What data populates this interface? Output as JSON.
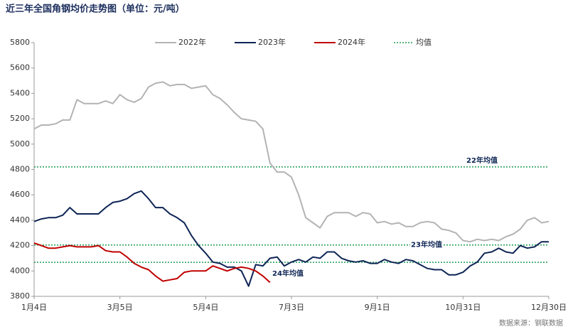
{
  "chart_data": {
    "type": "line",
    "title": "近三年全国角钢均价走势图（单位：元/吨）",
    "source": "数据来源：钢联数据",
    "categories": [
      "1月4日",
      null,
      null,
      null,
      null,
      null,
      null,
      null,
      null,
      null,
      null,
      null,
      "3月5日",
      null,
      null,
      null,
      null,
      null,
      null,
      null,
      null,
      null,
      null,
      null,
      "5月4日",
      null,
      null,
      null,
      null,
      null,
      null,
      null,
      null,
      null,
      null,
      null,
      "7月3日",
      null,
      null,
      null,
      null,
      null,
      null,
      null,
      null,
      null,
      null,
      null,
      "9月1日",
      null,
      null,
      null,
      null,
      null,
      null,
      null,
      null,
      null,
      null,
      null,
      "10月31日",
      null,
      null,
      null,
      null,
      null,
      null,
      null,
      null,
      null,
      null,
      null,
      "12月30日"
    ],
    "ylim": [
      3800,
      5800
    ],
    "yticks": [
      3800,
      4000,
      4200,
      4400,
      4600,
      4800,
      5000,
      5200,
      5400,
      5600,
      5800
    ],
    "series": [
      {
        "name": "2022年",
        "color": "#b3b3b3",
        "values": [
          5120,
          5150,
          5150,
          5160,
          5190,
          5190,
          5350,
          5320,
          5320,
          5320,
          5340,
          5320,
          5390,
          5350,
          5330,
          5360,
          5450,
          5480,
          5490,
          5460,
          5470,
          5470,
          5440,
          5450,
          5460,
          5390,
          5360,
          5310,
          5250,
          5200,
          5190,
          5180,
          5120,
          4850,
          4780,
          4780,
          4740,
          4600,
          4420,
          4380,
          4340,
          4430,
          4460,
          4460,
          4460,
          4430,
          4460,
          4450,
          4380,
          4390,
          4370,
          4380,
          4350,
          4350,
          4380,
          4390,
          4380,
          4330,
          4320,
          4300,
          4240,
          4230,
          4250,
          4240,
          4250,
          4240,
          4270,
          4290,
          4330,
          4400,
          4420,
          4380,
          4390
        ]
      },
      {
        "name": "2023年",
        "color": "#0d2455",
        "values": [
          4390,
          4410,
          4420,
          4420,
          4440,
          4500,
          4450,
          4450,
          4450,
          4450,
          4500,
          4540,
          4550,
          4570,
          4610,
          4630,
          4570,
          4500,
          4500,
          4450,
          4420,
          4380,
          4280,
          4200,
          4140,
          4070,
          4060,
          4030,
          4030,
          4000,
          3880,
          4050,
          4040,
          4100,
          4110,
          4040,
          4070,
          4090,
          4070,
          4110,
          4100,
          4150,
          4150,
          4100,
          4080,
          4070,
          4080,
          4060,
          4060,
          4090,
          4070,
          4060,
          4090,
          4080,
          4050,
          4020,
          4010,
          4010,
          3970,
          3970,
          3990,
          4040,
          4070,
          4140,
          4150,
          4180,
          4150,
          4140,
          4200,
          4180,
          4190,
          4230,
          4230
        ]
      },
      {
        "name": "2024年",
        "color": "#c00000",
        "values": [
          4220,
          4200,
          4180,
          4180,
          4190,
          4200,
          4190,
          4190,
          4190,
          4200,
          4160,
          4150,
          4150,
          4110,
          4060,
          4030,
          4010,
          3960,
          3920,
          3930,
          3940,
          3990,
          4000,
          4000,
          4000,
          4040,
          4020,
          4000,
          4020,
          4030,
          4020,
          4000,
          3960,
          3910,
          null,
          null,
          null,
          null,
          null,
          null,
          null,
          null,
          null,
          null,
          null,
          null,
          null,
          null,
          null,
          null,
          null,
          null,
          null,
          null,
          null,
          null,
          null,
          null,
          null,
          null,
          null,
          null,
          null,
          null,
          null,
          null,
          null,
          null,
          null,
          null,
          null,
          null,
          null
        ]
      }
    ],
    "reference_lines": {
      "name": "均值",
      "color": "#1e9c55",
      "lines": [
        {
          "label": "22年均值",
          "value": 4820
        },
        {
          "label": "23年均值",
          "value": 4205
        },
        {
          "label": "24年均值",
          "value": 4068
        }
      ]
    }
  }
}
